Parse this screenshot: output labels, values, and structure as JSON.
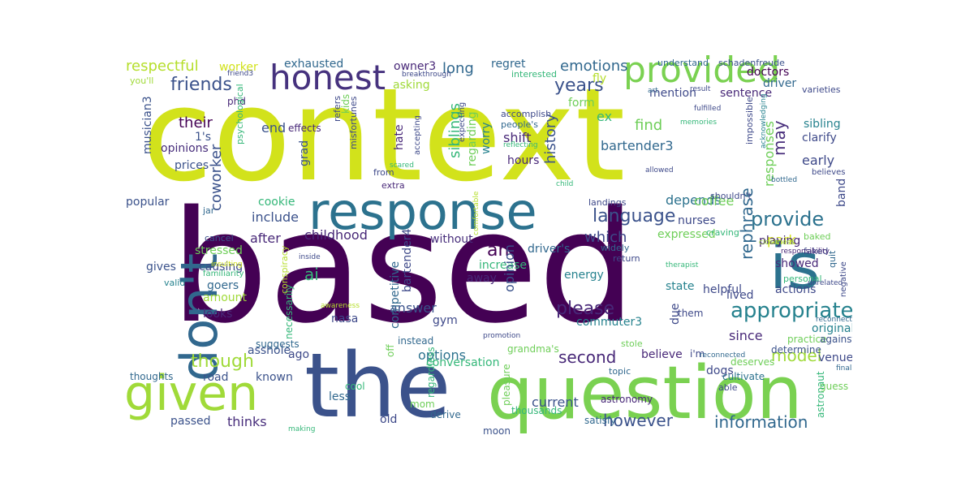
{
  "words": [
    {
      "text": "context",
      "color": "#d2e21b"
    },
    {
      "text": "based",
      "color": "#440154"
    },
    {
      "text": "question",
      "color": "#7ad151"
    },
    {
      "text": "the",
      "color": "#3b528b"
    },
    {
      "text": "response",
      "color": "#2c728e"
    },
    {
      "text": "given",
      "color": "#a0da39"
    },
    {
      "text": "provided",
      "color": "#7ad151"
    },
    {
      "text": "is",
      "color": "#2c728e"
    },
    {
      "text": "don't",
      "color": "#31688e"
    },
    {
      "text": "honest",
      "color": "#46327e"
    },
    {
      "text": "appropriate",
      "color": "#26828e"
    },
    {
      "text": "information",
      "color": "#31688e"
    },
    {
      "text": "however",
      "color": "#3b528b"
    },
    {
      "text": "please",
      "color": "#482878"
    },
    {
      "text": "provide",
      "color": "#2c728e"
    },
    {
      "text": "language",
      "color": "#3b528b"
    },
    {
      "text": "model",
      "color": "#a0da39"
    },
    {
      "text": "though",
      "color": "#a0da39"
    },
    {
      "text": "second",
      "color": "#482878"
    },
    {
      "text": "years",
      "color": "#3b528b"
    },
    {
      "text": "friends",
      "color": "#3b528b"
    },
    {
      "text": "emotions",
      "color": "#31688e"
    },
    {
      "text": "respectful",
      "color": "#b5de2b"
    },
    {
      "text": "exhausted",
      "color": "#31688e"
    },
    {
      "text": "long",
      "color": "#31688e"
    },
    {
      "text": "regret",
      "color": "#31688e"
    },
    {
      "text": "owner3",
      "color": "#482878"
    },
    {
      "text": "worker",
      "color": "#d2e21b"
    },
    {
      "text": "understand",
      "color": "#31688e"
    },
    {
      "text": "schadenfreude",
      "color": "#3b528b"
    },
    {
      "text": "doctors",
      "color": "#440154"
    },
    {
      "text": "driver",
      "color": "#31688e"
    },
    {
      "text": "fly",
      "color": "#b5de2b"
    },
    {
      "text": "form",
      "color": "#6ece58"
    },
    {
      "text": "mention",
      "color": "#3e4989"
    },
    {
      "text": "sentence",
      "color": "#482878"
    },
    {
      "text": "ex",
      "color": "#35b779"
    },
    {
      "text": "may",
      "color": "#472d7b"
    },
    {
      "text": "find",
      "color": "#6ece58"
    },
    {
      "text": "bartender3",
      "color": "#31688e"
    },
    {
      "text": "sibling",
      "color": "#26828e"
    },
    {
      "text": "clarify",
      "color": "#3e4989"
    },
    {
      "text": "early",
      "color": "#3e4989"
    },
    {
      "text": "their",
      "color": "#440154"
    },
    {
      "text": "coworker",
      "color": "#3b528b"
    },
    {
      "text": "end",
      "color": "#3b528b"
    },
    {
      "text": "siblings",
      "color": "#35b779"
    },
    {
      "text": "history",
      "color": "#3b528b"
    },
    {
      "text": "shift",
      "color": "#482878"
    },
    {
      "text": "worry",
      "color": "#26828e"
    },
    {
      "text": "hate",
      "color": "#482878"
    },
    {
      "text": "opinions",
      "color": "#472d7b"
    },
    {
      "text": "prices",
      "color": "#3b528b"
    },
    {
      "text": "1's",
      "color": "#3b528b"
    },
    {
      "text": "phd",
      "color": "#482878"
    },
    {
      "text": "effects",
      "color": "#482878"
    },
    {
      "text": "musician3",
      "color": "#3b528b"
    },
    {
      "text": "kids",
      "color": "#6ece58"
    },
    {
      "text": "grad",
      "color": "#3b528b"
    },
    {
      "text": "hours",
      "color": "#482878"
    },
    {
      "text": "popular",
      "color": "#3b528b"
    },
    {
      "text": "cookie",
      "color": "#35b779"
    },
    {
      "text": "include",
      "color": "#3b528b"
    },
    {
      "text": "depends",
      "color": "#2c728e"
    },
    {
      "text": "coffee",
      "color": "#6ece58"
    },
    {
      "text": "responses",
      "color": "#6ece58"
    },
    {
      "text": "band",
      "color": "#3e4989"
    },
    {
      "text": "childhood",
      "color": "#482878"
    },
    {
      "text": "after",
      "color": "#482878"
    },
    {
      "text": "which",
      "color": "#3e4989"
    },
    {
      "text": "stressed",
      "color": "#6ece58"
    },
    {
      "text": "causing",
      "color": "#3e4989"
    },
    {
      "text": "nurses",
      "color": "#3e4989"
    },
    {
      "text": "rephrase",
      "color": "#31688e"
    },
    {
      "text": "expressed",
      "color": "#6ece58"
    },
    {
      "text": "park",
      "color": "#d2e21b"
    },
    {
      "text": "playing",
      "color": "#482878"
    },
    {
      "text": "driver's",
      "color": "#31688e"
    },
    {
      "text": "without",
      "color": "#472d7b"
    },
    {
      "text": "an",
      "color": "#440154"
    },
    {
      "text": "ai",
      "color": "#35b779"
    },
    {
      "text": "gives",
      "color": "#3b528b"
    },
    {
      "text": "amount",
      "color": "#a0da39"
    },
    {
      "text": "goers",
      "color": "#31688e"
    },
    {
      "text": "looks",
      "color": "#482878"
    },
    {
      "text": "increase",
      "color": "#35b779"
    },
    {
      "text": "away",
      "color": "#482878"
    },
    {
      "text": "energy",
      "color": "#26828e"
    },
    {
      "text": "opinion",
      "color": "#3b528b"
    },
    {
      "text": "state",
      "color": "#26828e"
    },
    {
      "text": "helpful",
      "color": "#3e4989"
    },
    {
      "text": "lived",
      "color": "#3e4989"
    },
    {
      "text": "actions",
      "color": "#3e4989"
    },
    {
      "text": "showed",
      "color": "#482878"
    },
    {
      "text": "answer",
      "color": "#3b528b"
    },
    {
      "text": "competitive",
      "color": "#31688e"
    },
    {
      "text": "bartender4",
      "color": "#3e4989"
    },
    {
      "text": "due",
      "color": "#3e4989"
    },
    {
      "text": "commuter3",
      "color": "#26828e"
    },
    {
      "text": "since",
      "color": "#482878"
    },
    {
      "text": "original",
      "color": "#26828e"
    },
    {
      "text": "options",
      "color": "#2c728e"
    },
    {
      "text": "conversation",
      "color": "#35b779"
    },
    {
      "text": "believe",
      "color": "#482878"
    },
    {
      "text": "asshole",
      "color": "#3b528b"
    },
    {
      "text": "ago",
      "color": "#3e4989"
    },
    {
      "text": "road",
      "color": "#3b528b"
    },
    {
      "text": "known",
      "color": "#3b528b"
    },
    {
      "text": "less",
      "color": "#31688e"
    },
    {
      "text": "current",
      "color": "#3b528b"
    },
    {
      "text": "thinks",
      "color": "#472d7b"
    },
    {
      "text": "passed",
      "color": "#3b528b"
    },
    {
      "text": "old",
      "color": "#3e4989"
    },
    {
      "text": "dogs",
      "color": "#3e4989"
    },
    {
      "text": "venue",
      "color": "#3e4989"
    },
    {
      "text": "gym",
      "color": "#3e4989"
    },
    {
      "text": "nasa",
      "color": "#3e4989"
    },
    {
      "text": "them",
      "color": "#3e4989"
    },
    {
      "text": "i'm",
      "color": "#3e4989"
    },
    {
      "text": "deserves",
      "color": "#6ece58"
    },
    {
      "text": "cultivate",
      "color": "#2c728e"
    },
    {
      "text": "grandma's",
      "color": "#6ece58"
    },
    {
      "text": "astronomy",
      "color": "#482878"
    },
    {
      "text": "practice",
      "color": "#6ece58"
    },
    {
      "text": "determine",
      "color": "#3b528b"
    },
    {
      "text": "against",
      "color": "#3b528b"
    },
    {
      "text": "guess",
      "color": "#6ece58"
    },
    {
      "text": "astronaut",
      "color": "#35b779"
    },
    {
      "text": "thoughts",
      "color": "#31688e"
    },
    {
      "text": "suggests",
      "color": "#31688e"
    },
    {
      "text": "off",
      "color": "#6ece58"
    },
    {
      "text": "necessarily",
      "color": "#35b779"
    },
    {
      "text": "instead",
      "color": "#31688e"
    },
    {
      "text": "regardless",
      "color": "#35b779"
    },
    {
      "text": "thousands",
      "color": "#35b779"
    },
    {
      "text": "satisfy",
      "color": "#31688e"
    },
    {
      "text": "derive",
      "color": "#31688e"
    },
    {
      "text": "mom",
      "color": "#6ece58"
    },
    {
      "text": "moon",
      "color": "#3b528b"
    },
    {
      "text": "pleasure",
      "color": "#6ece58"
    },
    {
      "text": "cool",
      "color": "#35b779"
    },
    {
      "text": "able",
      "color": "#3e4989"
    },
    {
      "text": "topic",
      "color": "#31688e"
    },
    {
      "text": "stole",
      "color": "#6ece58"
    },
    {
      "text": "return",
      "color": "#3e4989"
    },
    {
      "text": "widely",
      "color": "#31688e"
    },
    {
      "text": "personal",
      "color": "#35b779"
    },
    {
      "text": "faked",
      "color": "#3e4989"
    },
    {
      "text": "baked",
      "color": "#6ece58"
    },
    {
      "text": "quit",
      "color": "#31688e"
    },
    {
      "text": "negative",
      "color": "#3e4989"
    },
    {
      "text": "craving",
      "color": "#35b779"
    },
    {
      "text": "landings",
      "color": "#3e4989"
    },
    {
      "text": "shouldn't",
      "color": "#3e4989"
    },
    {
      "text": "cancel",
      "color": "#3b528b"
    },
    {
      "text": "jar",
      "color": "#31688e"
    },
    {
      "text": "valid",
      "color": "#26828e"
    },
    {
      "text": "familiarity",
      "color": "#35b779"
    },
    {
      "text": "conspiracy",
      "color": "#b5de2b"
    },
    {
      "text": "insulting",
      "color": "#d2e21b"
    },
    {
      "text": "inside",
      "color": "#3e4989"
    },
    {
      "text": "awareness",
      "color": "#b5de2b"
    },
    {
      "text": "promotion",
      "color": "#3e4989"
    },
    {
      "text": "therapist",
      "color": "#35b779"
    },
    {
      "text": "unrelated",
      "color": "#3e4989"
    },
    {
      "text": "reconnected",
      "color": "#31688e"
    },
    {
      "text": "reconnect",
      "color": "#31688e"
    },
    {
      "text": "making",
      "color": "#35b779"
    },
    {
      "text": "finally",
      "color": "#31688e"
    },
    {
      "text": "closeness",
      "color": "#a0da39"
    },
    {
      "text": "responsibility",
      "color": "#482878"
    },
    {
      "text": "comfortable",
      "color": "#b5de2b"
    },
    {
      "text": "child",
      "color": "#35b779"
    },
    {
      "text": "allowed",
      "color": "#3e4989"
    },
    {
      "text": "bottled",
      "color": "#31688e"
    },
    {
      "text": "believes",
      "color": "#3e4989"
    },
    {
      "text": "impossible",
      "color": "#3e4989"
    },
    {
      "text": "acknowledging",
      "color": "#26828e"
    },
    {
      "text": "fulfilled",
      "color": "#3e4989"
    },
    {
      "text": "memories",
      "color": "#35b779"
    },
    {
      "text": "result",
      "color": "#3e4989"
    },
    {
      "text": "varieties",
      "color": "#3e4989"
    },
    {
      "text": "art",
      "color": "#31688e"
    },
    {
      "text": "interested",
      "color": "#35b779"
    },
    {
      "text": "breakthrough",
      "color": "#3e4989"
    },
    {
      "text": "accomplish",
      "color": "#3e4989"
    },
    {
      "text": "people's",
      "color": "#31688e"
    },
    {
      "text": "reflecting",
      "color": "#35b779"
    },
    {
      "text": "expecting",
      "color": "#3e4989"
    },
    {
      "text": "regarding",
      "color": "#6ece58"
    },
    {
      "text": "accepting",
      "color": "#3e4989"
    },
    {
      "text": "refers",
      "color": "#3e4989"
    },
    {
      "text": "misfortunes",
      "color": "#3e4989"
    },
    {
      "text": "scared",
      "color": "#35b779"
    },
    {
      "text": "from",
      "color": "#3e4989"
    },
    {
      "text": "extra",
      "color": "#482878"
    },
    {
      "text": "psychological",
      "color": "#35b779"
    },
    {
      "text": "friend3",
      "color": "#3e4989"
    },
    {
      "text": "you'll",
      "color": "#a0da39"
    },
    {
      "text": "asking",
      "color": "#a0da39"
    }
  ]
}
